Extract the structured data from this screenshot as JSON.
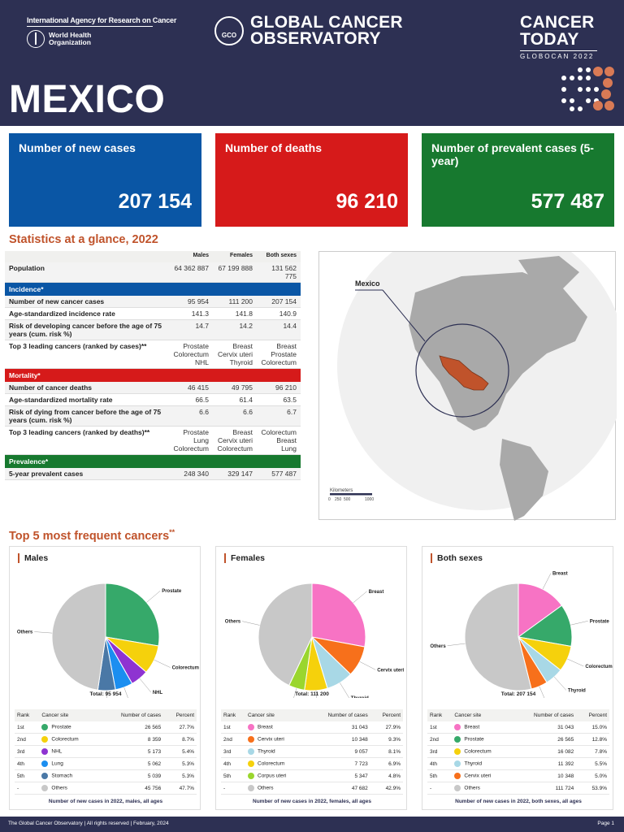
{
  "header": {
    "iarc": "International Agency for Research on Cancer",
    "who_line1": "World Health",
    "who_line2": "Organization",
    "gco_logo": "GCO",
    "gco_line1": "GLOBAL CANCER",
    "gco_line2": "OBSERVATORY",
    "ct_line1": "CANCER",
    "ct_line2": "TODAY",
    "ct_sub": "GLOBOCAN 2022",
    "country": "MEXICO"
  },
  "kpis": [
    {
      "label": "Number of new cases",
      "value": "207 154",
      "color": "#0a56a5"
    },
    {
      "label": "Number of deaths",
      "value": "96 210",
      "color": "#d61a1a"
    },
    {
      "label": "Number of prevalent cases (5-year)",
      "value": "577 487",
      "color": "#17792f"
    }
  ],
  "stats": {
    "title": "Statistics at a glance, 2022",
    "cols": [
      "Males",
      "Females",
      "Both sexes"
    ],
    "population": {
      "label": "Population",
      "values": [
        "64 362 887",
        "67 199 888",
        "131 562 775"
      ]
    },
    "incidence_band": "Incidence*",
    "incidence": [
      {
        "label": "Number of new cancer cases",
        "values": [
          "95 954",
          "111 200",
          "207 154"
        ]
      },
      {
        "label": "Age-standardized incidence rate",
        "values": [
          "141.3",
          "141.8",
          "140.9"
        ]
      },
      {
        "label": "Risk of developing cancer before the age of 75 years (cum. risk %)",
        "values": [
          "14.7",
          "14.2",
          "14.4"
        ]
      },
      {
        "label": "Top 3 leading cancers (ranked by cases)**",
        "values": [
          "Prostate\nColorectum\nNHL",
          "Breast\nCervix uteri\nThyroid",
          "Breast\nProstate\nColorectum"
        ]
      }
    ],
    "mortality_band": "Mortality*",
    "mortality": [
      {
        "label": "Number of cancer deaths",
        "values": [
          "46 415",
          "49 795",
          "96 210"
        ]
      },
      {
        "label": "Age-standardized mortality rate",
        "values": [
          "66.5",
          "61.4",
          "63.5"
        ]
      },
      {
        "label": "Risk of dying from cancer before the age of 75 years (cum. risk %)",
        "values": [
          "6.6",
          "6.6",
          "6.7"
        ]
      },
      {
        "label": "Top 3 leading cancers (ranked by deaths)**",
        "values": [
          "Prostate\nLung\nColorectum",
          "Breast\nCervix uteri\nColorectum",
          "Colorectum\nBreast\nLung"
        ]
      }
    ],
    "prevalence_band": "Prevalence*",
    "prevalence": [
      {
        "label": "5-year prevalent cases",
        "values": [
          "248 340",
          "329 147",
          "577 487"
        ]
      }
    ]
  },
  "map": {
    "label": "Mexico",
    "scale_title": "Kilometers",
    "scale_ticks": [
      "0",
      "250",
      "500",
      "1000"
    ]
  },
  "top5": {
    "title": "Top 5 most frequent cancers",
    "title_mark": "**",
    "table_headers": [
      "Rank",
      "Cancer site",
      "Number of cases",
      "Percent"
    ],
    "cards": [
      {
        "title": "Males",
        "total": "Total: 95 954",
        "footer": "Number of new cases in 2022, males, all ages",
        "rows": [
          {
            "rank": "1st",
            "site": "Prostate",
            "cases": "26 565",
            "percent": "27.7%",
            "pct": 27.7,
            "color": "#36a96a"
          },
          {
            "rank": "2nd",
            "site": "Colorectum",
            "cases": "8 359",
            "percent": "8.7%",
            "pct": 8.7,
            "color": "#f5d10c"
          },
          {
            "rank": "3rd",
            "site": "NHL",
            "cases": "5 173",
            "percent": "5.4%",
            "pct": 5.4,
            "color": "#8e33d1"
          },
          {
            "rank": "4th",
            "site": "Lung",
            "cases": "5 062",
            "percent": "5.3%",
            "pct": 5.3,
            "color": "#1b8ef0"
          },
          {
            "rank": "5th",
            "site": "Stomach",
            "cases": "5 039",
            "percent": "5.3%",
            "pct": 5.3,
            "color": "#4a78a6"
          },
          {
            "rank": "-",
            "site": "Others",
            "cases": "45 756",
            "percent": "47.7%",
            "pct": 47.7,
            "color": "#c8c8c8"
          }
        ],
        "pie_labels": [
          {
            "text": "Prostate"
          },
          {
            "text": "Colorectum"
          },
          {
            "text": "NHL"
          },
          {
            "text": "Lung"
          },
          {
            "text": "Stomach"
          },
          {
            "text": "Others"
          }
        ]
      },
      {
        "title": "Females",
        "total": "Total: 111 200",
        "footer": "Number of new cases in 2022, females, all ages",
        "rows": [
          {
            "rank": "1st",
            "site": "Breast",
            "cases": "31 043",
            "percent": "27.9%",
            "pct": 27.9,
            "color": "#f773c4"
          },
          {
            "rank": "2nd",
            "site": "Cervix uteri",
            "cases": "10 348",
            "percent": "9.3%",
            "pct": 9.3,
            "color": "#f7701b"
          },
          {
            "rank": "3rd",
            "site": "Thyroid",
            "cases": "9 057",
            "percent": "8.1%",
            "pct": 8.1,
            "color": "#a8d8e6"
          },
          {
            "rank": "4th",
            "site": "Colorectum",
            "cases": "7 723",
            "percent": "6.9%",
            "pct": 6.9,
            "color": "#f5d10c"
          },
          {
            "rank": "5th",
            "site": "Corpus uteri",
            "cases": "5 347",
            "percent": "4.8%",
            "pct": 4.8,
            "color": "#9ad62e"
          },
          {
            "rank": "-",
            "site": "Others",
            "cases": "47 682",
            "percent": "42.9%",
            "pct": 42.9,
            "color": "#c8c8c8"
          }
        ],
        "pie_labels": [
          {
            "text": "Breast"
          },
          {
            "text": "Cervix uteri"
          },
          {
            "text": "Thyroid"
          },
          {
            "text": "Colorectum"
          },
          {
            "text": "Corpus uteri"
          },
          {
            "text": "Others"
          }
        ]
      },
      {
        "title": "Both sexes",
        "total": "Total: 207 154",
        "footer": "Number of new cases in 2022, both sexes, all ages",
        "rows": [
          {
            "rank": "1st",
            "site": "Breast",
            "cases": "31 043",
            "percent": "15.0%",
            "pct": 15.0,
            "color": "#f773c4"
          },
          {
            "rank": "2nd",
            "site": "Prostate",
            "cases": "26 565",
            "percent": "12.8%",
            "pct": 12.8,
            "color": "#36a96a"
          },
          {
            "rank": "3rd",
            "site": "Colorectum",
            "cases": "16 082",
            "percent": "7.8%",
            "pct": 7.8,
            "color": "#f5d10c"
          },
          {
            "rank": "4th",
            "site": "Thyroid",
            "cases": "11 392",
            "percent": "5.5%",
            "pct": 5.5,
            "color": "#a8d8e6"
          },
          {
            "rank": "5th",
            "site": "Cervix uteri",
            "cases": "10 348",
            "percent": "5.0%",
            "pct": 5.0,
            "color": "#f7701b"
          },
          {
            "rank": "-",
            "site": "Others",
            "cases": "111 724",
            "percent": "53.9%",
            "pct": 53.9,
            "color": "#c8c8c8"
          }
        ],
        "pie_labels": [
          {
            "text": "Breast"
          },
          {
            "text": "Prostate"
          },
          {
            "text": "Colorectum"
          },
          {
            "text": "Thyroid"
          },
          {
            "text": "Cervix uteri"
          },
          {
            "text": "Others"
          }
        ]
      }
    ]
  },
  "footer": {
    "left": "The Global Cancer Observatory | All rights reserved | February, 2024",
    "right": "Page 1"
  },
  "chart_data": [
    {
      "type": "pie",
      "title": "Males",
      "categories": [
        "Prostate",
        "Colorectum",
        "NHL",
        "Lung",
        "Stomach",
        "Others"
      ],
      "values": [
        26565,
        8359,
        5173,
        5062,
        5039,
        45756
      ]
    },
    {
      "type": "pie",
      "title": "Females",
      "categories": [
        "Breast",
        "Cervix uteri",
        "Thyroid",
        "Colorectum",
        "Corpus uteri",
        "Others"
      ],
      "values": [
        31043,
        10348,
        9057,
        7723,
        5347,
        47682
      ]
    },
    {
      "type": "pie",
      "title": "Both sexes",
      "categories": [
        "Breast",
        "Prostate",
        "Colorectum",
        "Thyroid",
        "Cervix uteri",
        "Others"
      ],
      "values": [
        31043,
        26565,
        16082,
        11392,
        10348,
        111724
      ]
    }
  ]
}
